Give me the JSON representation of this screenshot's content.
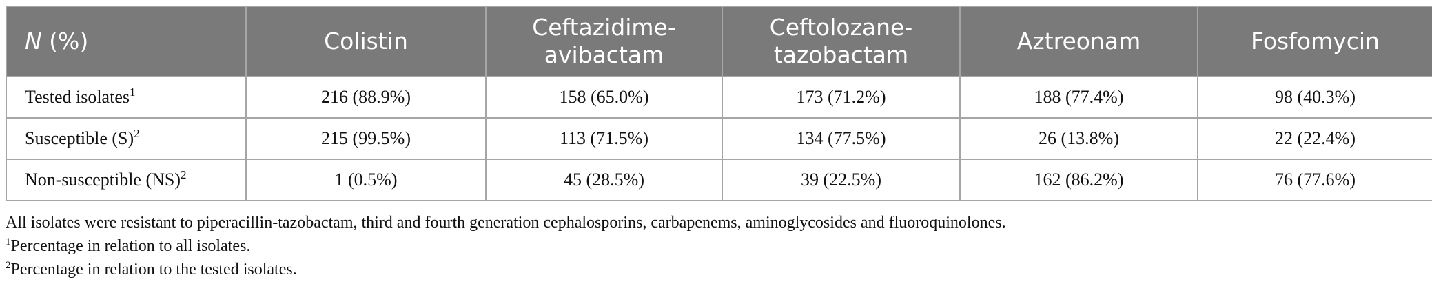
{
  "table": {
    "header": {
      "first_var": "N",
      "first_suffix": " (%)",
      "columns": [
        "Colistin",
        "Ceftazidime-avibactam",
        "Ceftolozane-tazobactam",
        "Aztreonam",
        "Fosfomycin"
      ]
    },
    "rows": [
      {
        "label": "Tested isolates",
        "sup": "1",
        "cells": [
          "216 (88.9%)",
          "158 (65.0%)",
          "173 (71.2%)",
          "188 (77.4%)",
          "98 (40.3%)"
        ]
      },
      {
        "label": "Susceptible (S)",
        "sup": "2",
        "cells": [
          "215 (99.5%)",
          "113 (71.5%)",
          "134 (77.5%)",
          "26 (13.8%)",
          "22 (22.4%)"
        ]
      },
      {
        "label": "Non-susceptible (NS)",
        "sup": "2",
        "cells": [
          "1 (0.5%)",
          "45 (28.5%)",
          "39 (22.5%)",
          "162 (86.2%)",
          "76 (77.6%)"
        ]
      }
    ]
  },
  "notes": {
    "general": "All isolates were resistant to piperacillin-tazobactam, third and fourth generation cephalosporins, carbapenems, aminoglycosides and fluoroquinolones.",
    "footnotes": [
      {
        "mark": "1",
        "text": "Percentage in relation to all isolates."
      },
      {
        "mark": "2",
        "text": "Percentage in relation to the tested isolates."
      }
    ]
  }
}
